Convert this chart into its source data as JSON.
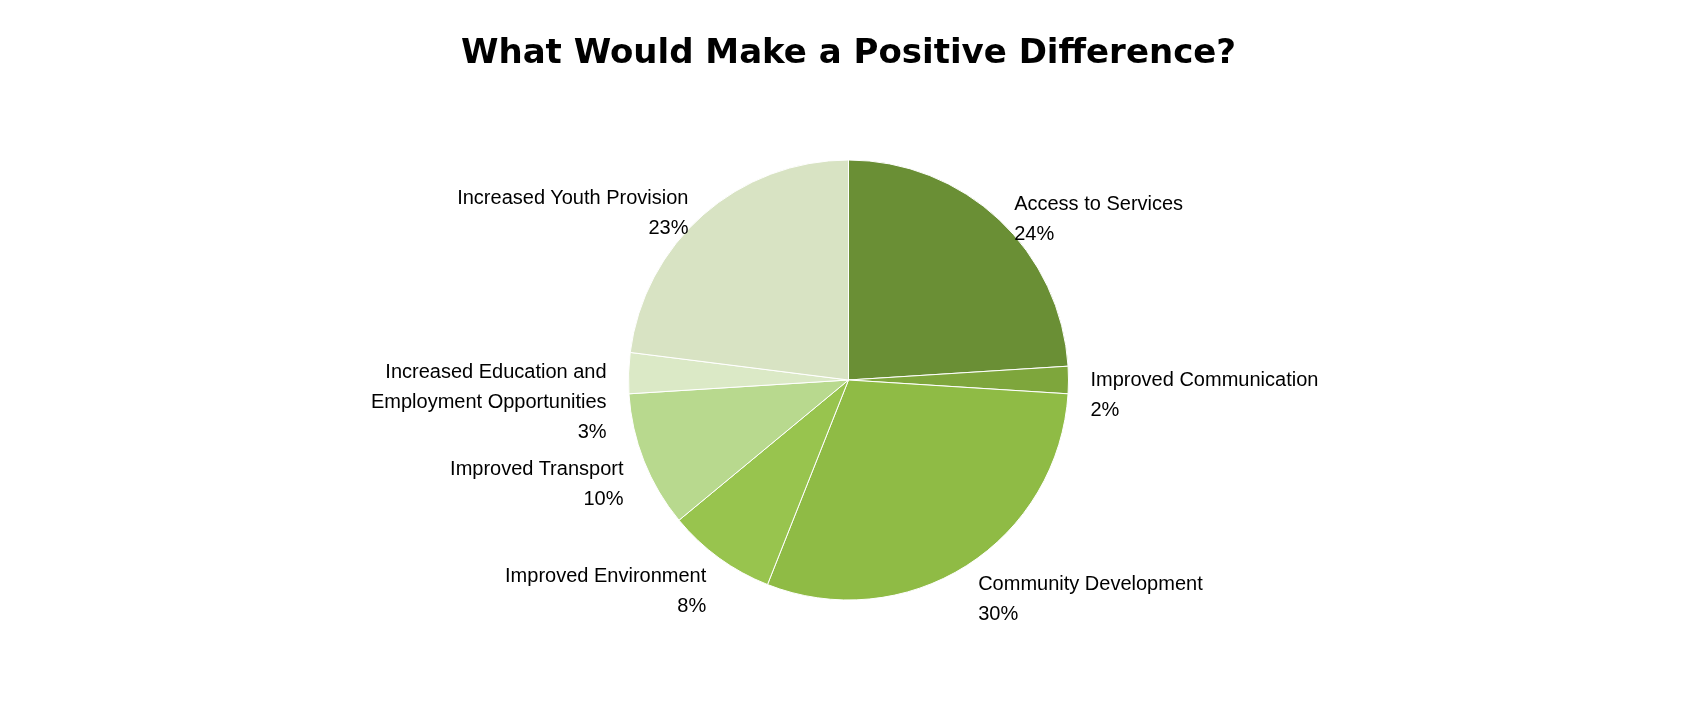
{
  "chart_data": {
    "type": "pie",
    "title": "What Would Make a Positive Difference?",
    "categories": [
      "Access to Services",
      "Improved Communication",
      "Community Development",
      "Improved Environment",
      "Improved Transport",
      "Increased Education and Employment Opportunities",
      "Increased Youth Provision"
    ],
    "values": [
      24,
      2,
      30,
      8,
      10,
      3,
      23
    ],
    "value_labels": [
      "24%",
      "2%",
      "30%",
      "8%",
      "10%",
      "3%",
      "23%"
    ],
    "colors": [
      "#6a8f35",
      "#7ea63c",
      "#8fbb45",
      "#98c44e",
      "#b8d98e",
      "#dbe9c6",
      "#d8e3c3"
    ]
  }
}
